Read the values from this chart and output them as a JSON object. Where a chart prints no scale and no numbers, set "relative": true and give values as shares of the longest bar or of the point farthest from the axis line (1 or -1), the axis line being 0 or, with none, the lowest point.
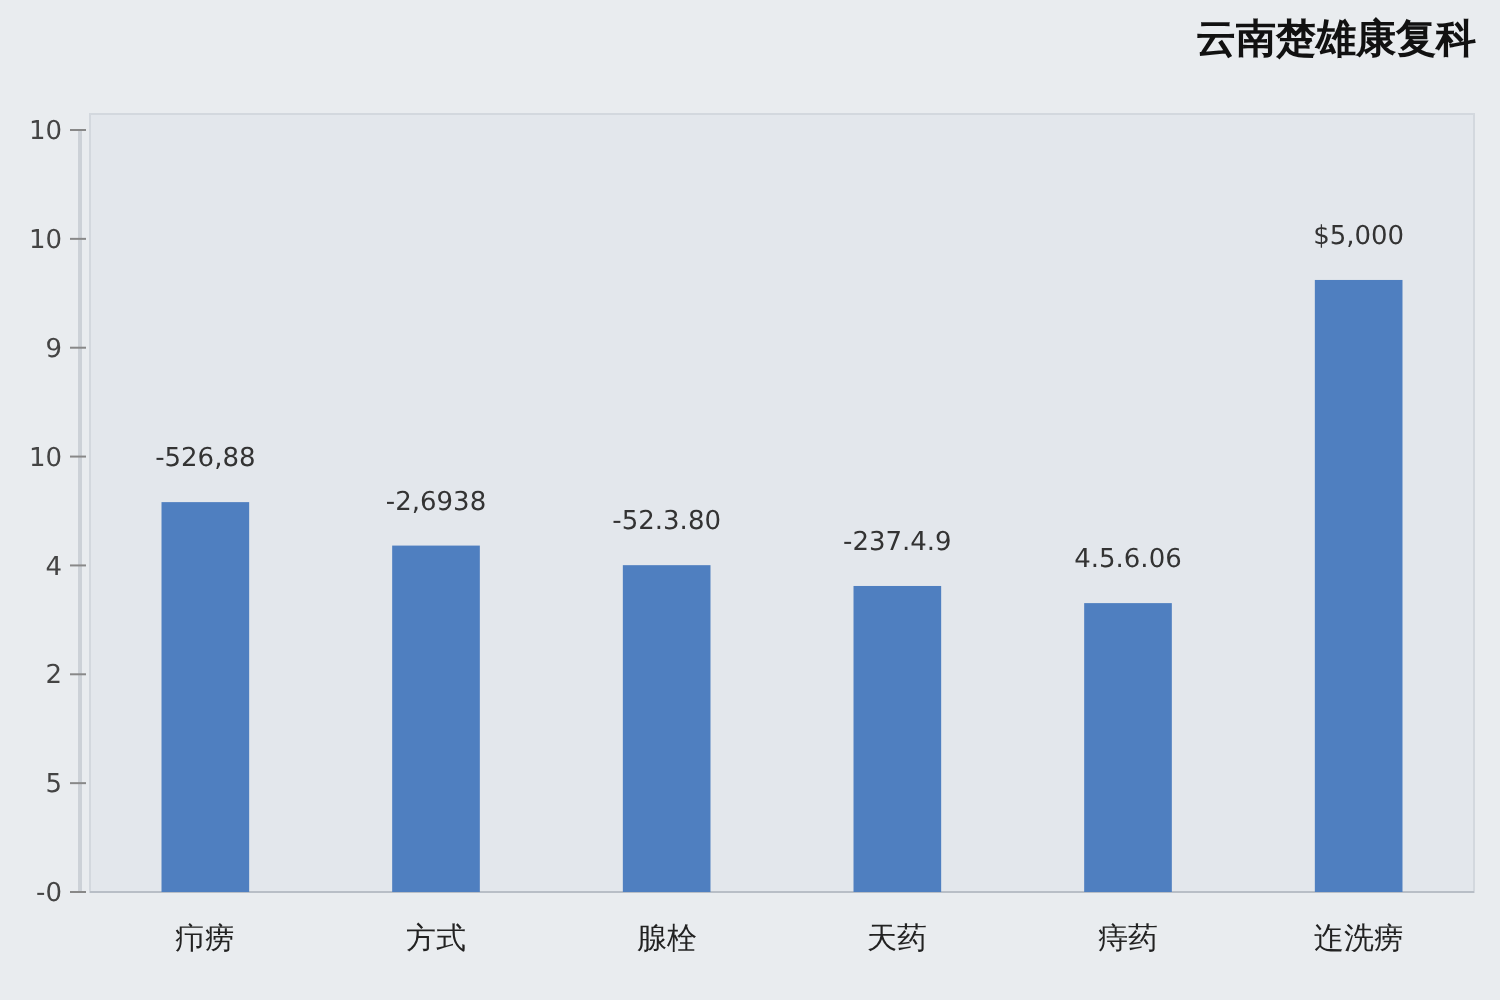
{
  "chart_data": {
    "type": "bar",
    "title": "云南楚雄康复科",
    "categories": [
      "疖痨",
      "方式",
      "腺栓",
      "天药",
      "痔药",
      "迮洗痨"
    ],
    "values": [
      0.637,
      0.566,
      0.534,
      0.5,
      0.472,
      1
    ],
    "color": "#4f7fc0",
    "relative": true,
    "annotations": [
      "-526,88",
      "-2,6938",
      "-52.3.80",
      "-237.4.9",
      "4.5.6.06",
      "$5,000",
      "-0",
      "5",
      "2",
      "4",
      "10",
      "9",
      "10",
      "10"
    ]
  }
}
